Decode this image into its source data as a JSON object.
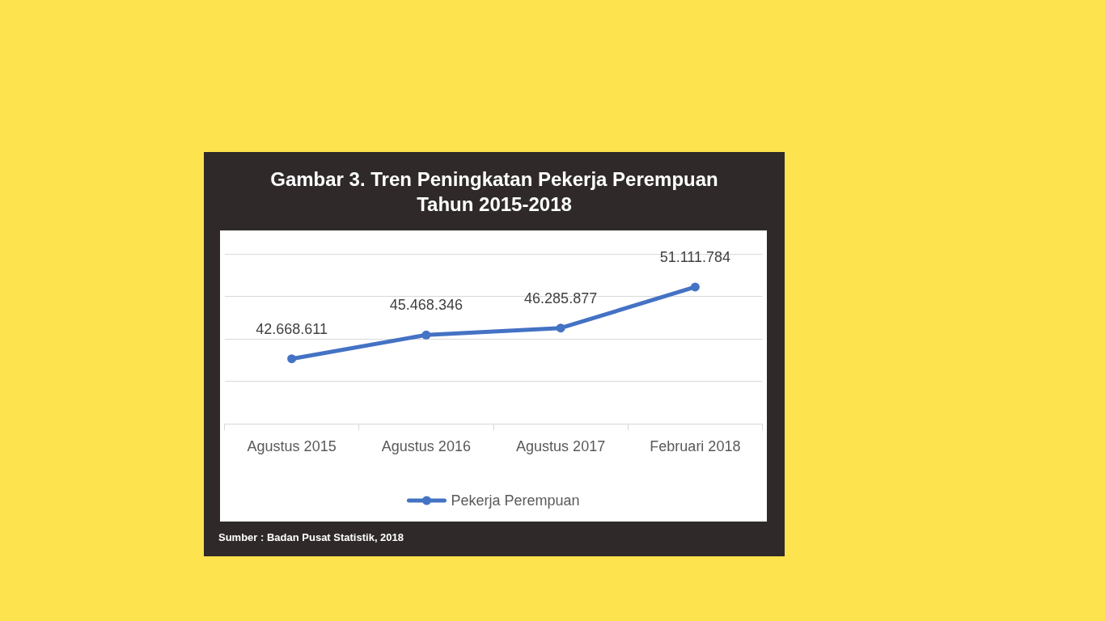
{
  "chart_data": {
    "type": "line",
    "title": "Gambar 3. Tren Peningkatan Pekerja Perempuan Tahun 2015-2018",
    "categories": [
      "Agustus 2015",
      "Agustus 2016",
      "Agustus 2017",
      "Februari 2018"
    ],
    "series": [
      {
        "name": "Pekerja Perempuan",
        "color": "#4472c4",
        "values": [
          42668611,
          45468346,
          46285877,
          51111784
        ],
        "value_labels": [
          "42.668.611",
          "45.468.346",
          "46.285.877",
          "51.111.784"
        ]
      }
    ],
    "ylim": [
      35000000,
      55000000
    ],
    "yticks": [
      {
        "value": 35000000,
        "label": null
      },
      {
        "value": 40000000,
        "label": null
      },
      {
        "value": 45000000,
        "label": null
      },
      {
        "value": 50000000,
        "label": null
      },
      {
        "value": 55000000,
        "label": null
      }
    ],
    "tick_labels": "x",
    "grid": "y",
    "legend": "bottom",
    "marker": "circle",
    "line_style": "solid",
    "annotations": [
      "Sumber : Badan Pusat Statistik, 2018"
    ]
  }
}
